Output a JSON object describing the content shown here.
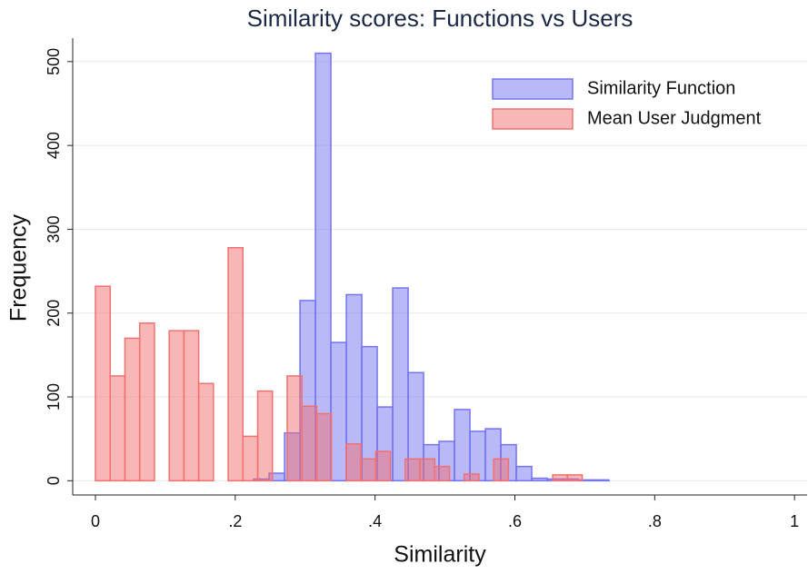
{
  "chart_data": {
    "type": "histogram",
    "title": "Similarity scores: Functions vs Users",
    "x_label": "Similarity",
    "y_label": "Frequency",
    "xlim": [
      -0.0325,
      1.018
    ],
    "ylim": [
      -17,
      528
    ],
    "xticks": [
      0,
      {
        "value": 0.2,
        "label": ".2"
      },
      {
        "value": 0.4,
        "label": ".4"
      },
      {
        "value": 0.6,
        "label": ".6"
      },
      {
        "value": 0.8,
        "label": ".8"
      },
      1
    ],
    "yticks": [
      0,
      100,
      200,
      300,
      400,
      500
    ],
    "grid": true,
    "legend_position": "upper right",
    "series": [
      {
        "name": "Similarity Function",
        "color": "#7474f2",
        "bins": [
          0.2263,
          0.2484,
          0.2705,
          0.2926,
          0.3147,
          0.3368,
          0.3589,
          0.381,
          0.4031,
          0.4252,
          0.4473,
          0.4694,
          0.4915,
          0.5136,
          0.5357,
          0.5578,
          0.5799,
          0.602,
          0.6241,
          0.6462,
          0.6683,
          0.6904,
          0.7125,
          0.7346
        ],
        "values": [
          2,
          9,
          57,
          215,
          510,
          165,
          222,
          160,
          88,
          230,
          129,
          43,
          47,
          85,
          59,
          62,
          43,
          17,
          3,
          2,
          2,
          1,
          1
        ]
      },
      {
        "name": "Mean User Judgment",
        "color": "#f27070",
        "bins": [
          0,
          0.0211,
          0.0422,
          0.0633,
          0.0844,
          0.1055,
          0.1266,
          0.1477,
          0.1688,
          0.1899,
          0.211,
          0.2321,
          0.2532,
          0.2743,
          0.2954,
          0.3165,
          0.3376,
          0.3587,
          0.3798,
          0.4009,
          0.422,
          0.4431,
          0.4642,
          0.4853,
          0.5064,
          0.5275,
          0.5486,
          0.5697,
          0.5908,
          0.6119,
          0.633,
          0.6541,
          0.6752,
          0.6963
        ],
        "values": [
          232,
          125,
          170,
          188,
          0,
          179,
          179,
          116,
          0,
          278,
          53,
          107,
          0,
          125,
          89,
          80,
          0,
          44,
          26,
          35,
          0,
          26,
          26,
          17,
          0,
          8,
          0,
          26,
          0,
          0,
          0,
          7,
          7
        ]
      }
    ]
  }
}
